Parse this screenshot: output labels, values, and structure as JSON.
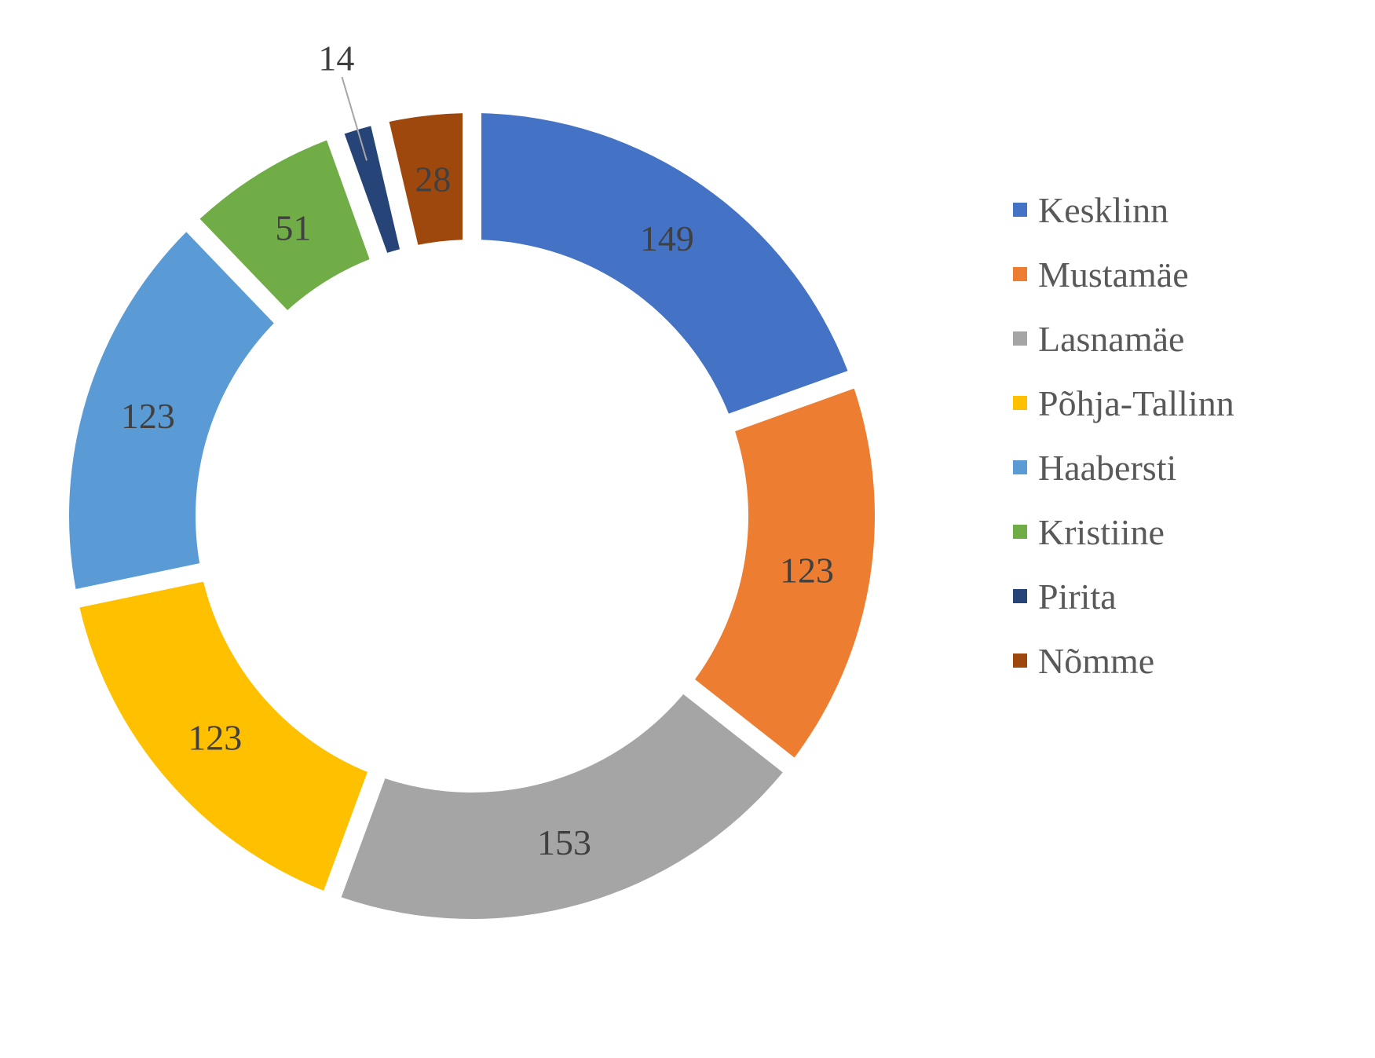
{
  "chart_data": {
    "type": "pie",
    "variant": "doughnut",
    "categories": [
      "Kesklinn",
      "Mustamäe",
      "Lasnamäe",
      "Põhja-Tallinn",
      "Haabersti",
      "Kristiine",
      "Pirita",
      "Nõmme"
    ],
    "values": [
      149,
      123,
      153,
      123,
      123,
      51,
      14,
      28
    ],
    "data_labels": [
      "149",
      "123",
      "153",
      "123",
      "123",
      "51",
      "14",
      "28"
    ],
    "colors": [
      "#4472C4",
      "#ED7D31",
      "#A5A5A5",
      "#FFC000",
      "#5B9BD5",
      "#70AD47",
      "#264478",
      "#9E480E"
    ],
    "legend_position": "right",
    "title": ""
  }
}
